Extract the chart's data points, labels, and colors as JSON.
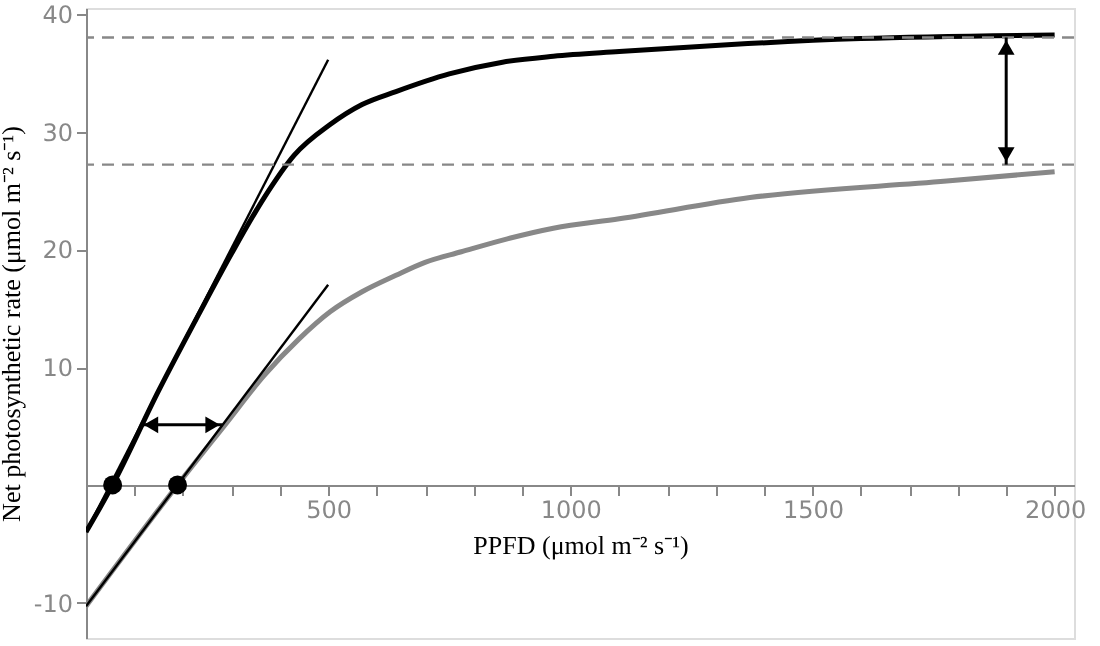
{
  "chart_data": {
    "type": "line",
    "xlabel": "PPFD (μmol m⁻² s⁻¹)",
    "ylabel": "Net photosynthetic rate (μmol m⁻² s⁻¹)",
    "xlim": [
      0,
      2040
    ],
    "ylim": [
      -13,
      40.5
    ],
    "xticks": [
      {
        "value": 100,
        "label": null
      },
      {
        "value": 200,
        "label": null
      },
      {
        "value": 300,
        "label": null
      },
      {
        "value": 400,
        "label": null
      },
      500,
      {
        "value": 600,
        "label": null
      },
      {
        "value": 700,
        "label": null
      },
      {
        "value": 800,
        "label": null
      },
      {
        "value": 900,
        "label": null
      },
      1000,
      {
        "value": 1100,
        "label": null
      },
      {
        "value": 1200,
        "label": null
      },
      {
        "value": 1300,
        "label": null
      },
      {
        "value": 1400,
        "label": null
      },
      1500,
      {
        "value": 1600,
        "label": null
      },
      {
        "value": 1700,
        "label": null
      },
      {
        "value": 1800,
        "label": null
      },
      {
        "value": 1900,
        "label": null
      },
      2000
    ],
    "yticks": [
      -10,
      10,
      20,
      30,
      40
    ],
    "grid": false,
    "marker": "none",
    "line_style": "solid",
    "series": [
      {
        "color": "#000000",
        "x": [
          0,
          55,
          150,
          233,
          300,
          368,
          430,
          504,
          570,
          640,
          750,
          860,
          965,
          1101,
          1333,
          1600,
          2000
        ],
        "values": [
          -4.0,
          0,
          8.0,
          14.5,
          19.6,
          24.4,
          28.0,
          30.6,
          32.3,
          33.4,
          34.9,
          35.9,
          36.4,
          36.8,
          37.4,
          37.9,
          38.2
        ]
      },
      {
        "color": "#888888",
        "x": [
          0,
          189,
          287,
          368,
          440,
          504,
          570,
          640,
          700,
          775,
          870,
          965,
          1101,
          1371,
          1777,
          2000
        ],
        "values": [
          -10.3,
          0,
          5.1,
          9.3,
          12.4,
          14.7,
          16.4,
          17.8,
          18.9,
          19.8,
          20.9,
          21.8,
          22.6,
          24.4,
          25.8,
          26.6
        ]
      },
      {
        "type": "line",
        "color": "#000000",
        "x": [
          0,
          500
        ],
        "values": [
          -4.0,
          36.1
        ]
      },
      {
        "type": "line",
        "color": "#000000",
        "x": [
          0,
          500
        ],
        "values": [
          -10.3,
          17.0
        ]
      },
      {
        "type": "scatter",
        "color": "#000000",
        "marker": "circle",
        "x": [
          55,
          189
        ],
        "values": [
          0,
          0
        ]
      }
    ],
    "ref_lines": [
      {
        "axis": "y",
        "value": 38.0,
        "color": "#888888",
        "line_style": "dashed"
      },
      {
        "axis": "y",
        "value": 27.2,
        "color": "#888888",
        "line_style": "dashed"
      }
    ]
  }
}
